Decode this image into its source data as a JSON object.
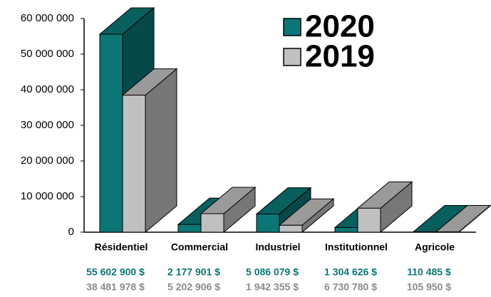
{
  "chart_data": {
    "type": "bar3d",
    "categories": [
      "Résidentiel",
      "Commercial",
      "Industriel",
      "Institutionnel",
      "Agricole"
    ],
    "series": [
      {
        "name": "2020",
        "color": "#0b7676",
        "values": [
          55602900,
          2177901,
          5086079,
          1304626,
          110485
        ],
        "value_labels": [
          "55 602 900 $",
          "2 177 901 $",
          "5 086 079 $",
          "1 304 626 $",
          "110 485 $"
        ]
      },
      {
        "name": "2019",
        "color": "#c0c0c0",
        "values": [
          38481978,
          5202906,
          1942355,
          6730780,
          105950
        ],
        "value_labels": [
          "38 481 978 $",
          "5 202 906 $",
          "1 942 355 $",
          "6 730 780 $",
          "105 950 $"
        ]
      }
    ],
    "ylim": [
      0,
      60000000
    ],
    "yticks": [
      0,
      {
        "value": 10000000,
        "label": "10 000 000"
      },
      {
        "value": 20000000,
        "label": "20 000 000"
      },
      {
        "value": 30000000,
        "label": "30 000 000"
      },
      {
        "value": 40000000,
        "label": "40 000 000"
      },
      {
        "value": 50000000,
        "label": "50 000 000"
      },
      {
        "value": 60000000,
        "label": "60 000 000"
      }
    ],
    "legend": "upper right"
  }
}
